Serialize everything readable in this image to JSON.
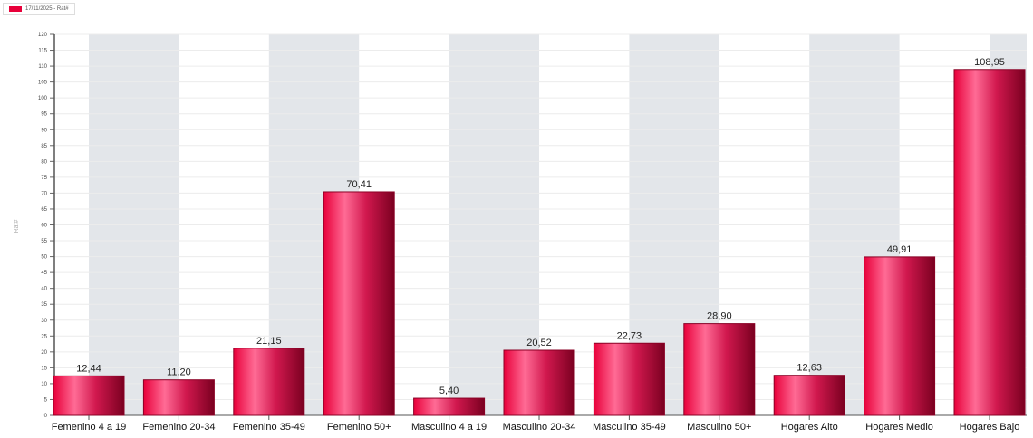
{
  "chart_data": {
    "type": "bar",
    "title": "",
    "xlabel": "",
    "ylabel": "Rat#",
    "ylim": [
      0,
      120
    ],
    "ytick_step": 5,
    "grid": true,
    "legend_placement": "top-left",
    "categories": [
      "Femenino 4 a 19",
      "Femenino 20-34",
      "Femenino 35-49",
      "Femenino 50+",
      "Masculino 4 a 19",
      "Masculino 20-34",
      "Masculino 35-49",
      "Masculino 50+",
      "Hogares Alto",
      "Hogares Medio",
      "Hogares Bajo"
    ],
    "series": [
      {
        "name": "17/11/2025 - Rat#",
        "values": [
          12.44,
          11.2,
          21.15,
          70.41,
          5.4,
          20.52,
          22.73,
          28.9,
          12.63,
          49.91,
          108.95
        ]
      }
    ],
    "data_labels": [
      "12,44",
      "11,20",
      "21,15",
      "70,41",
      "5,40",
      "20,52",
      "22,73",
      "28,90",
      "12,63",
      "49,91",
      "108,95"
    ],
    "colors": {
      "bar_light": "#ff6b95",
      "bar_main": "#e8003a",
      "bar_dark": "#7a0020",
      "band": "#e3e6ea"
    }
  }
}
